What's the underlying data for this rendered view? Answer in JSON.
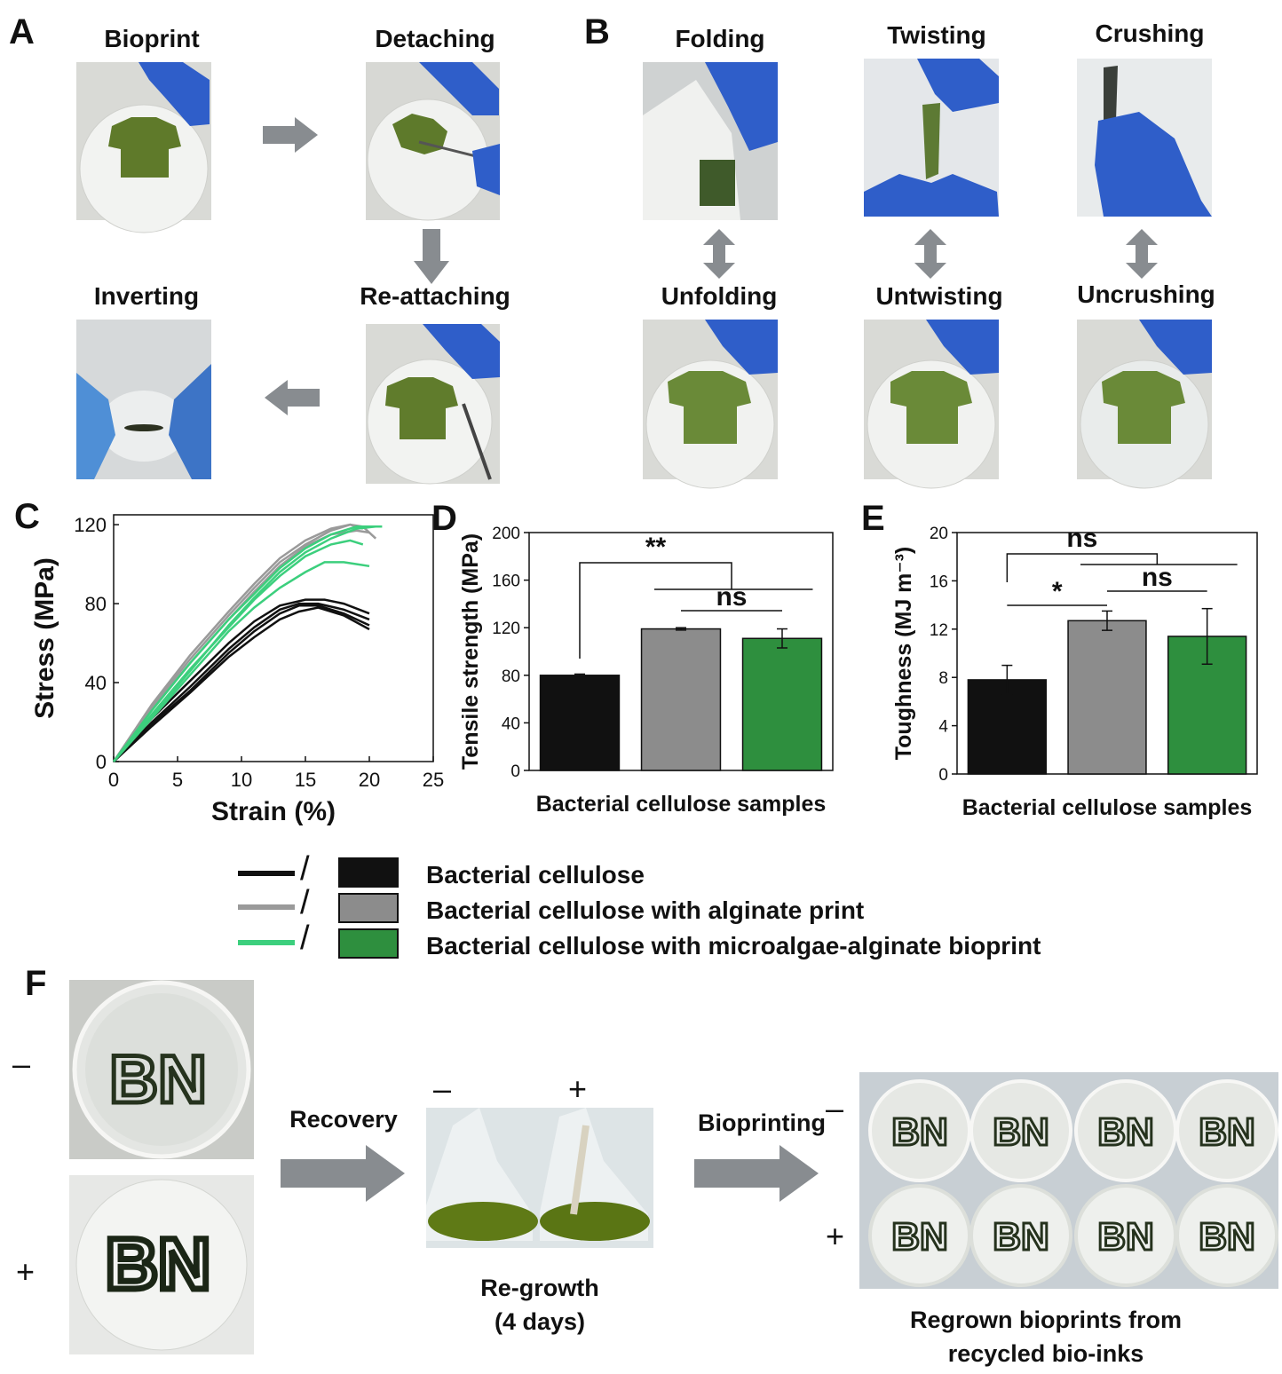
{
  "panels": {
    "A": "A",
    "B": "B",
    "C": "C",
    "D": "D",
    "E": "E",
    "F": "F"
  },
  "panelA": {
    "bioprint": "Bioprint",
    "detaching": "Detaching",
    "reattaching": "Re-attaching",
    "inverting": "Inverting"
  },
  "panelB": {
    "folding": "Folding",
    "twisting": "Twisting",
    "crushing": "Crushing",
    "unfolding": "Unfolding",
    "untwisting": "Untwisting",
    "uncrushing": "Uncrushing"
  },
  "legend": {
    "items": [
      {
        "label": "Bacterial cellulose",
        "line": "#111111",
        "fill": "#111111"
      },
      {
        "label": "Bacterial cellulose with alginate print",
        "line": "#9a9a9a",
        "fill": "#8c8c8c"
      },
      {
        "label": "Bacterial cellulose with microalgae-alginate bioprint",
        "line": "#3ccf7d",
        "fill": "#2e8f3e"
      }
    ],
    "slash": "/"
  },
  "panelF": {
    "minus": "–",
    "plus": "+",
    "recovery": "Recovery",
    "bioprinting": "Bioprinting",
    "regrowth_1": "Re-growth",
    "regrowth_2": "(4 days)",
    "regrown_1": "Regrown bioprints from",
    "regrown_2": "recycled bio-inks",
    "print_text": "BN"
  },
  "chart_data": [
    {
      "type": "line",
      "xlabel": "Strain (%)",
      "ylabel": "Stress (MPa)",
      "xlim": [
        0,
        25
      ],
      "ylim": [
        0,
        125
      ],
      "xticks": [
        0,
        5,
        10,
        15,
        20,
        25
      ],
      "yticks": [
        0,
        40,
        80,
        120
      ],
      "series": [
        {
          "color": "#111111",
          "x": [
            0,
            3,
            6,
            9,
            11,
            13,
            14.5,
            16,
            18,
            20
          ],
          "y": [
            0,
            20,
            38,
            57,
            68,
            77,
            80,
            80,
            77,
            72
          ]
        },
        {
          "color": "#111111",
          "x": [
            0,
            3,
            6,
            9,
            11,
            13,
            14.5,
            16,
            18,
            20
          ],
          "y": [
            0,
            18,
            35,
            53,
            63,
            72,
            76,
            78,
            74,
            67
          ]
        },
        {
          "color": "#111111",
          "x": [
            0,
            3,
            6,
            9,
            11,
            13,
            15,
            16.5,
            18,
            20
          ],
          "y": [
            0,
            22,
            41,
            60,
            71,
            79,
            82,
            82,
            80,
            75
          ]
        },
        {
          "color": "#111111",
          "x": [
            0,
            3,
            6,
            9,
            11,
            13,
            14.5,
            16,
            18,
            20
          ],
          "y": [
            0,
            19,
            36,
            55,
            66,
            75,
            79,
            79,
            75,
            69
          ]
        },
        {
          "color": "#9a9a9a",
          "x": [
            0,
            3,
            6,
            9,
            11,
            13,
            15,
            17,
            18.5,
            19.5,
            20.5
          ],
          "y": [
            0,
            28,
            52,
            74,
            88,
            101,
            110,
            117,
            120,
            119,
            113
          ]
        },
        {
          "color": "#9a9a9a",
          "x": [
            0,
            3,
            6,
            9,
            11,
            13,
            15,
            17,
            19,
            20
          ],
          "y": [
            0,
            27,
            50,
            72,
            86,
            99,
            109,
            115,
            117,
            116
          ]
        },
        {
          "color": "#9a9a9a",
          "x": [
            0,
            3,
            6,
            9,
            11,
            13,
            15,
            17,
            18.5,
            19.5
          ],
          "y": [
            0,
            29,
            54,
            76,
            90,
            103,
            112,
            118,
            120,
            118
          ]
        },
        {
          "color": "#3ccf7d",
          "x": [
            0,
            3,
            6,
            9,
            11,
            13,
            15,
            17,
            19,
            21
          ],
          "y": [
            0,
            26,
            50,
            72,
            85,
            98,
            108,
            115,
            119,
            119
          ]
        },
        {
          "color": "#3ccf7d",
          "x": [
            0,
            3,
            6,
            9,
            11,
            13,
            15,
            16.5,
            18,
            20
          ],
          "y": [
            0,
            22,
            44,
            66,
            78,
            88,
            96,
            101,
            101,
            99
          ]
        },
        {
          "color": "#3ccf7d",
          "x": [
            0,
            3,
            6,
            9,
            11,
            13,
            15,
            17,
            18.5,
            19.5
          ],
          "y": [
            0,
            24,
            47,
            68,
            82,
            94,
            104,
            110,
            112,
            110
          ]
        },
        {
          "color": "#3ccf7d",
          "x": [
            0,
            3,
            6,
            9,
            11,
            13,
            15,
            17,
            19,
            20.5
          ],
          "y": [
            0,
            23,
            46,
            69,
            83,
            96,
            106,
            113,
            118,
            119
          ]
        }
      ]
    },
    {
      "type": "bar",
      "xlabel": "Bacterial cellulose samples",
      "ylabel": "Tensile strength (MPa)",
      "ylim": [
        0,
        200
      ],
      "yticks": [
        0,
        40,
        80,
        120,
        160,
        200
      ],
      "categories": [
        "Bacterial cellulose",
        "Bacterial cellulose with alginate print",
        "Bacterial cellulose with microalgae-alginate bioprint"
      ],
      "values": [
        80,
        119,
        111
      ],
      "errors": [
        1,
        1,
        8
      ],
      "colors": [
        "#111111",
        "#8c8c8c",
        "#2e8f3e"
      ],
      "annotations": [
        {
          "label": "**",
          "from": 0,
          "to": "group12"
        },
        {
          "label": "ns",
          "from": 1,
          "to": 2
        }
      ]
    },
    {
      "type": "bar",
      "xlabel": "Bacterial cellulose samples",
      "ylabel": "Toughness (MJ m⁻³)",
      "ylim": [
        0,
        20
      ],
      "yticks": [
        0,
        4,
        8,
        12,
        16,
        20
      ],
      "categories": [
        "Bacterial cellulose",
        "Bacterial cellulose with alginate print",
        "Bacterial cellulose with microalgae-alginate bioprint"
      ],
      "values": [
        7.8,
        12.7,
        11.4
      ],
      "errors": [
        1.2,
        0.8,
        2.3
      ],
      "colors": [
        "#111111",
        "#8c8c8c",
        "#2e8f3e"
      ],
      "annotations": [
        {
          "label": "ns",
          "from": 0,
          "to": "group12"
        },
        {
          "label": "*",
          "from": 0,
          "to": 1
        },
        {
          "label": "ns",
          "from": 1,
          "to": 2
        }
      ]
    }
  ]
}
